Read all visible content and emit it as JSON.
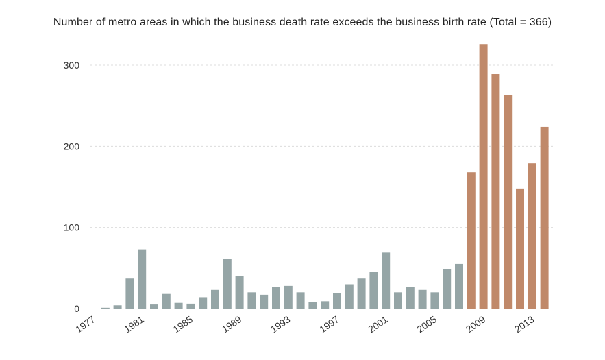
{
  "chart_data": {
    "type": "bar",
    "title": "Number of metro areas in which the business death rate exceeds the business birth rate (Total = 366)",
    "xlabel": "",
    "ylabel": "",
    "ylim": [
      0,
      330
    ],
    "yticks": [
      0,
      100,
      200,
      300
    ],
    "grid": true,
    "categories": [
      "1977",
      "1978",
      "1979",
      "1980",
      "1981",
      "1982",
      "1983",
      "1984",
      "1985",
      "1986",
      "1987",
      "1988",
      "1989",
      "1990",
      "1991",
      "1992",
      "1993",
      "1994",
      "1995",
      "1996",
      "1997",
      "1998",
      "1999",
      "2000",
      "2001",
      "2002",
      "2003",
      "2004",
      "2005",
      "2006",
      "2007",
      "2008",
      "2009",
      "2010",
      "2011",
      "2012",
      "2013",
      "2014"
    ],
    "xtick_labels": [
      "1977",
      "1981",
      "1985",
      "1989",
      "1993",
      "1997",
      "2001",
      "2005",
      "2009",
      "2013"
    ],
    "values": [
      0,
      1,
      4,
      37,
      73,
      5,
      18,
      7,
      6,
      14,
      23,
      61,
      40,
      20,
      17,
      27,
      28,
      20,
      8,
      9,
      19,
      30,
      37,
      45,
      69,
      20,
      27,
      23,
      20,
      49,
      55,
      168,
      326,
      289,
      263,
      148,
      179,
      224
    ],
    "colors": {
      "default": "#95a5a6",
      "highlight": "#c0896a",
      "grid": "#dcdcdc"
    },
    "highlight_from": "2008"
  }
}
